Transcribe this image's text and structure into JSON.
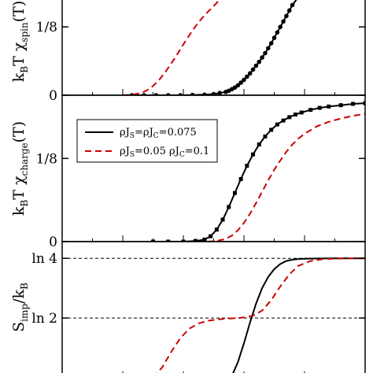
{
  "chart_data": [
    {
      "panel": "spin",
      "type": "line",
      "ylabel": {
        "pre": "k",
        "sub1": "B",
        "mid": "T χ",
        "sub2": "spin",
        "post": "(T)"
      },
      "ylim": [
        0,
        0.18
      ],
      "x_range": [
        0,
        1
      ],
      "yticks": [
        {
          "value": 0,
          "label": "0"
        },
        {
          "value": 0.125,
          "label": "1/8"
        }
      ],
      "series": [
        {
          "style": "solid-markers",
          "color": "#000000",
          "x": [
            0.23,
            0.27,
            0.31,
            0.35,
            0.39,
            0.43,
            0.47,
            0.5,
            0.52,
            0.54,
            0.55,
            0.56,
            0.57,
            0.58,
            0.59,
            0.6,
            0.61,
            0.62,
            0.63,
            0.64,
            0.65,
            0.66,
            0.67,
            0.68,
            0.69,
            0.7,
            0.71,
            0.72,
            0.73,
            0.74,
            0.75,
            0.76,
            0.78
          ],
          "y": [
            0,
            0,
            0,
            0,
            0,
            0.0005,
            0.001,
            0.002,
            0.004,
            0.006,
            0.008,
            0.011,
            0.014,
            0.018,
            0.023,
            0.028,
            0.034,
            0.04,
            0.047,
            0.054,
            0.061,
            0.069,
            0.077,
            0.086,
            0.095,
            0.105,
            0.115,
            0.125,
            0.135,
            0.145,
            0.155,
            0.165,
            0.18
          ]
        },
        {
          "style": "dashed",
          "color": "#cc0000",
          "x": [
            0.2,
            0.23,
            0.26,
            0.28,
            0.3,
            0.32,
            0.34,
            0.36,
            0.38,
            0.4,
            0.42,
            0.44,
            0.46,
            0.48,
            0.5,
            0.52
          ],
          "y": [
            0,
            0.001,
            0.004,
            0.009,
            0.017,
            0.028,
            0.042,
            0.058,
            0.075,
            0.093,
            0.11,
            0.126,
            0.14,
            0.152,
            0.163,
            0.175
          ]
        }
      ]
    },
    {
      "panel": "charge",
      "type": "line",
      "ylabel": {
        "pre": "k",
        "sub1": "B",
        "mid": "T χ",
        "sub2": "charge",
        "post": "(T)"
      },
      "ylim": [
        0,
        0.22
      ],
      "x_range": [
        0,
        1
      ],
      "yticks": [
        {
          "value": 0,
          "label": "0"
        },
        {
          "value": 0.125,
          "label": "1/8"
        }
      ],
      "legend": {
        "position": "upper-left",
        "entries": [
          {
            "style": "solid",
            "color": "#000000",
            "t1": "ρJ",
            "s1": "S",
            "t2": "=ρJ",
            "s2": "C",
            "t3": "=0.075"
          },
          {
            "style": "dashed",
            "color": "#cc0000",
            "t1": "ρJ",
            "s1": "S",
            "t2": "=0.05  ρJ",
            "s2": "C",
            "t3": "=0.1"
          }
        ]
      },
      "series": [
        {
          "style": "solid-markers",
          "color": "#000000",
          "x": [
            0.3,
            0.35,
            0.4,
            0.44,
            0.47,
            0.49,
            0.51,
            0.53,
            0.55,
            0.57,
            0.59,
            0.61,
            0.63,
            0.65,
            0.67,
            0.69,
            0.71,
            0.73,
            0.75,
            0.77,
            0.79,
            0.82,
            0.85,
            0.88,
            0.92,
            0.96,
            1.0
          ],
          "y": [
            0,
            0,
            0,
            0.001,
            0.003,
            0.008,
            0.018,
            0.033,
            0.052,
            0.073,
            0.094,
            0.114,
            0.131,
            0.146,
            0.158,
            0.168,
            0.176,
            0.182,
            0.187,
            0.191,
            0.194,
            0.198,
            0.201,
            0.203,
            0.205,
            0.207,
            0.208
          ]
        },
        {
          "style": "dashed",
          "color": "#cc0000",
          "x": [
            0.48,
            0.51,
            0.54,
            0.56,
            0.58,
            0.6,
            0.62,
            0.64,
            0.66,
            0.68,
            0.7,
            0.72,
            0.74,
            0.76,
            0.78,
            0.8,
            0.84,
            0.88,
            0.92,
            0.96,
            1.0
          ],
          "y": [
            0,
            0.001,
            0.004,
            0.009,
            0.017,
            0.028,
            0.042,
            0.058,
            0.075,
            0.092,
            0.108,
            0.122,
            0.135,
            0.146,
            0.155,
            0.162,
            0.173,
            0.18,
            0.185,
            0.189,
            0.192
          ]
        }
      ]
    },
    {
      "panel": "entropy",
      "type": "line",
      "ylabel": {
        "pre": "S",
        "sub1": "imp",
        "mid": "/k",
        "sub2": "B",
        "post": ""
      },
      "ylim": [
        0,
        1.58
      ],
      "x_range": [
        0,
        1
      ],
      "yticks": [
        {
          "value": 0.693,
          "label": "ln 2"
        },
        {
          "value": 1.386,
          "label": "ln 4"
        }
      ],
      "reference_lines": [
        0.693,
        1.386
      ],
      "series": [
        {
          "style": "solid",
          "color": "#000000",
          "x": [
            0.56,
            0.58,
            0.6,
            0.62,
            0.64,
            0.66,
            0.68,
            0.7,
            0.72,
            0.74,
            0.76,
            0.78,
            0.82,
            0.86,
            0.92,
            1.0
          ],
          "y": [
            0.02,
            0.18,
            0.4,
            0.64,
            0.86,
            1.04,
            1.17,
            1.26,
            1.32,
            1.355,
            1.37,
            1.378,
            1.383,
            1.385,
            1.386,
            1.386
          ]
        },
        {
          "style": "dashed",
          "color": "#cc0000",
          "x": [
            0.3,
            0.33,
            0.36,
            0.39,
            0.42,
            0.45,
            0.48,
            0.51,
            0.54,
            0.57,
            0.6,
            0.63,
            0.66,
            0.69,
            0.72,
            0.75,
            0.78,
            0.82,
            0.86,
            0.9,
            0.95,
            1.0
          ],
          "y": [
            0.0,
            0.12,
            0.3,
            0.46,
            0.57,
            0.63,
            0.66,
            0.675,
            0.685,
            0.69,
            0.7,
            0.72,
            0.78,
            0.9,
            1.06,
            1.2,
            1.3,
            1.355,
            1.375,
            1.382,
            1.385,
            1.386
          ]
        }
      ]
    }
  ]
}
